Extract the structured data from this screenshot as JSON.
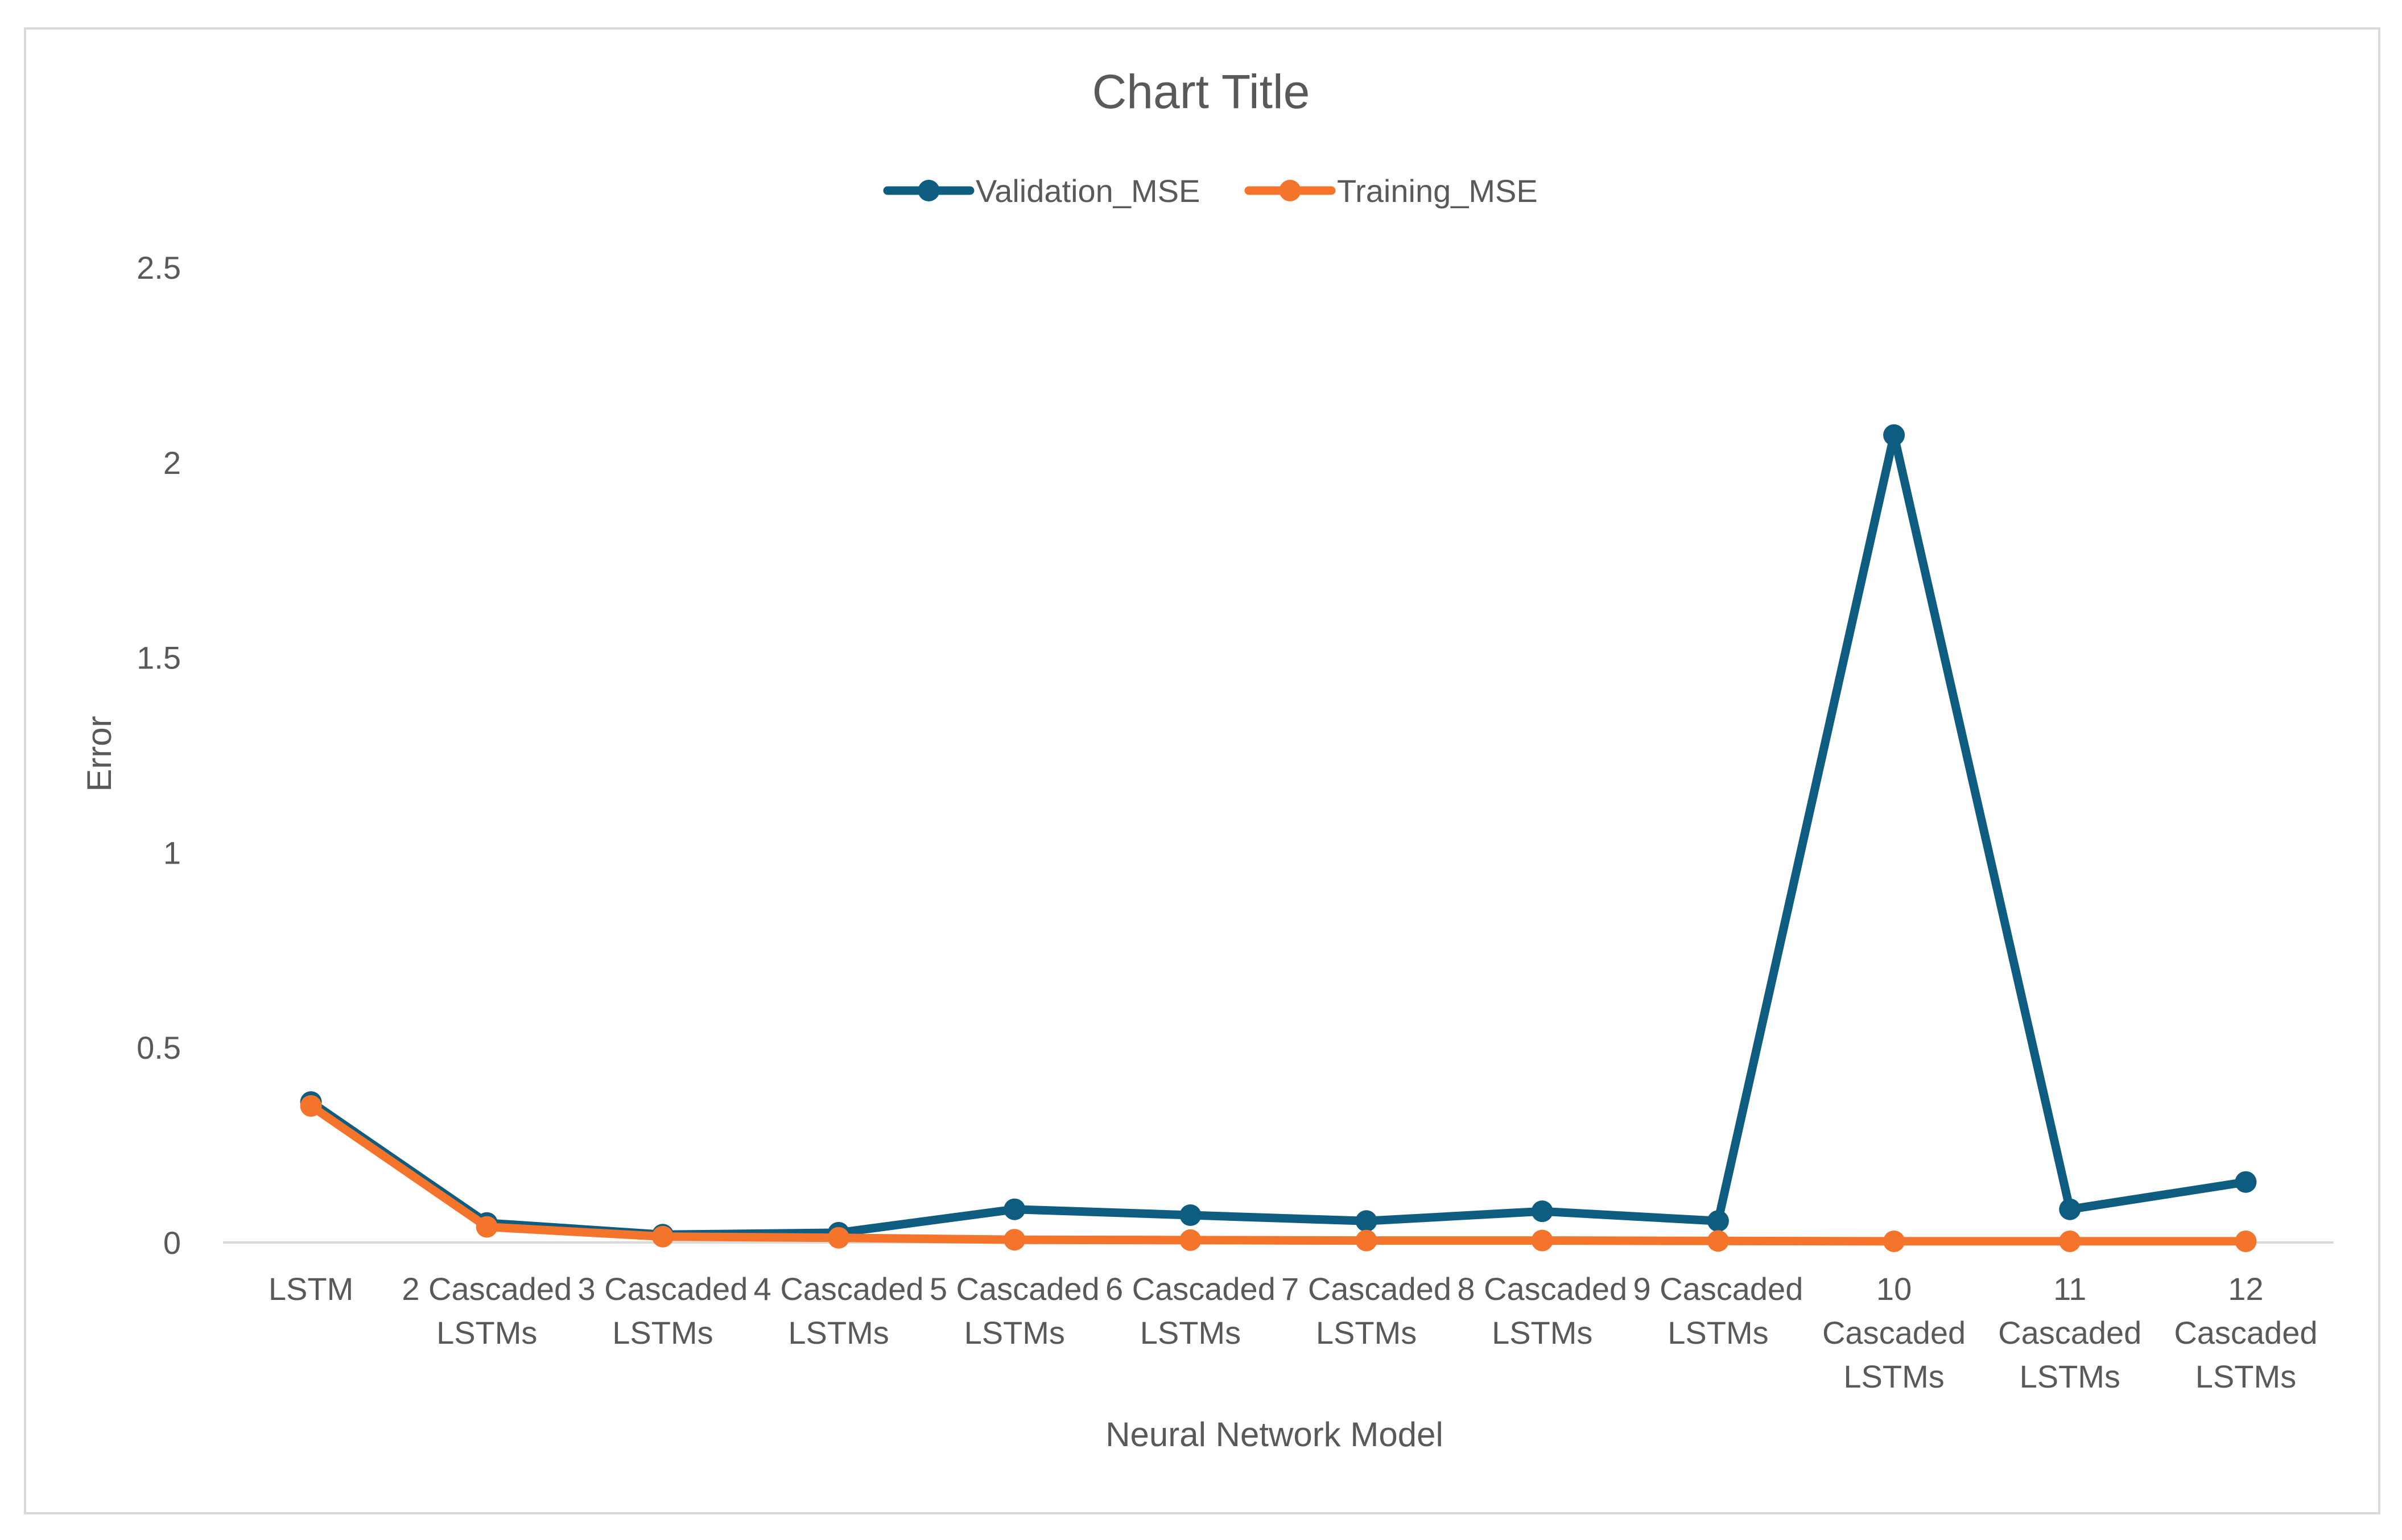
{
  "chart_data": {
    "type": "line",
    "title": "Chart Title",
    "xlabel": "Neural Network Model",
    "ylabel": "Error",
    "ylim": [
      0,
      2.5
    ],
    "yticks": [
      "0",
      "0.5",
      "1",
      "1.5",
      "2",
      "2.5"
    ],
    "grid": false,
    "legend_position": "top",
    "categories": [
      [
        "LSTM"
      ],
      [
        "2 Cascaded",
        "LSTMs"
      ],
      [
        "3 Cascaded",
        "LSTMs"
      ],
      [
        "4 Cascaded",
        "LSTMs"
      ],
      [
        "5 Cascaded",
        "LSTMs"
      ],
      [
        "6 Cascaded",
        "LSTMs"
      ],
      [
        "7 Cascaded",
        "LSTMs"
      ],
      [
        "8 Cascaded",
        "LSTMs"
      ],
      [
        "9 Cascaded",
        "LSTMs"
      ],
      [
        "10",
        "Cascaded",
        "LSTMs"
      ],
      [
        "11",
        "Cascaded",
        "LSTMs"
      ],
      [
        "12",
        "Cascaded",
        "LSTMs"
      ]
    ],
    "series": [
      {
        "name": "Validation_MSE",
        "color": "#0E5C80",
        "values": [
          0.36,
          0.05,
          0.02,
          0.025,
          0.085,
          0.07,
          0.055,
          0.08,
          0.055,
          2.07,
          0.085,
          0.155
        ]
      },
      {
        "name": "Training_MSE",
        "color": "#F4742B",
        "values": [
          0.35,
          0.04,
          0.015,
          0.012,
          0.007,
          0.006,
          0.005,
          0.005,
          0.004,
          0.003,
          0.003,
          0.003
        ]
      }
    ]
  }
}
